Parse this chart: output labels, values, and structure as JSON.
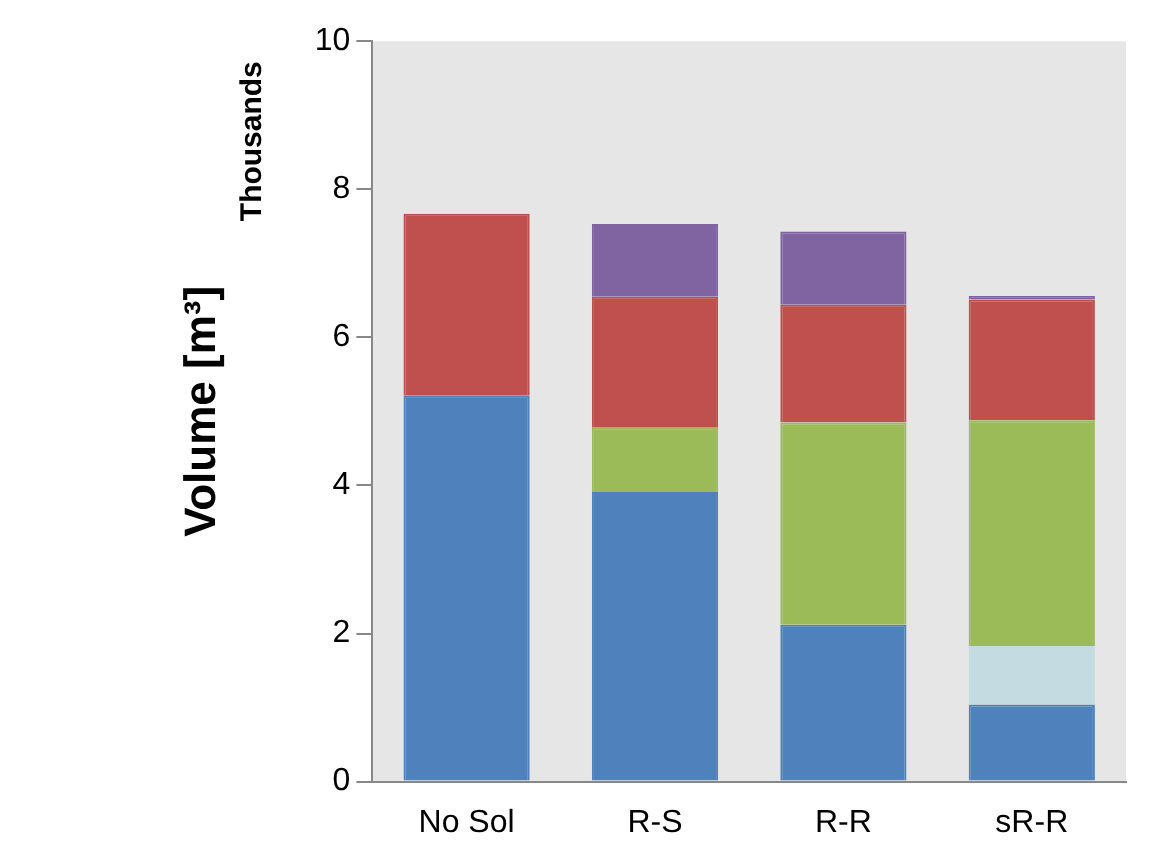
{
  "chart_data": {
    "type": "bar",
    "stacked": true,
    "ylabel": "Volume [m³]",
    "annotations": [
      "Thousands"
    ],
    "categories": [
      "No Sol",
      "R-S",
      "R-R",
      "sR-R"
    ],
    "series": [
      {
        "color": "#4f81bd",
        "values": [
          5.21,
          3.91,
          2.12,
          1.04
        ]
      },
      {
        "color": "#c5dbe2",
        "values": [
          0,
          0,
          0,
          0.79
        ]
      },
      {
        "color": "#9bbb59",
        "values": [
          0,
          0.87,
          2.73,
          3.05
        ]
      },
      {
        "color": "#c0504d",
        "values": [
          2.46,
          1.77,
          1.59,
          1.63
        ]
      },
      {
        "color": "#8064a2",
        "values": [
          0,
          0.98,
          0.99,
          0.05
        ]
      }
    ],
    "ylim": [
      0,
      10
    ],
    "yticks": [
      0,
      2,
      4,
      6,
      8,
      10
    ],
    "grid": false,
    "legend": false
  }
}
